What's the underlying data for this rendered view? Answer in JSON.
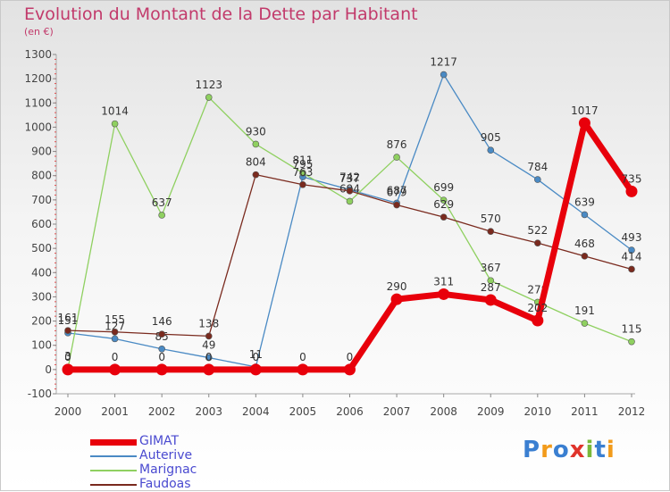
{
  "header": {
    "title": "Evolution du Montant de la Dette par Habitant",
    "subtitle": "(en €)"
  },
  "logo": {
    "text": "Proxiti",
    "colors": [
      "#3a7fd1",
      "#f29b1b",
      "#3a7fd1",
      "#e0342b",
      "#7ab83a",
      "#3a7fd1",
      "#f29b1b"
    ]
  },
  "chart_data": {
    "type": "line",
    "title": "Evolution du Montant de la Dette par Habitant",
    "subtitle": "(en €)",
    "xlabel": "",
    "ylabel": "",
    "x": [
      "2000",
      "2001",
      "2002",
      "2003",
      "2004",
      "2005",
      "2006",
      "2007",
      "2008",
      "2009",
      "2010",
      "2011",
      "2012"
    ],
    "ylim": [
      -100,
      1300
    ],
    "yticks": [
      -100,
      0,
      100,
      200,
      300,
      400,
      500,
      600,
      700,
      800,
      900,
      1000,
      1100,
      1200,
      1300
    ],
    "grid": false,
    "legend": "bottom-left",
    "series": [
      {
        "name": "GIMAT",
        "color": "#e8000b",
        "values": [
          0,
          0,
          0,
          0,
          0,
          0,
          0,
          290,
          311,
          287,
          202,
          1017,
          735
        ]
      },
      {
        "name": "Auterive",
        "color": "#4a8ac4",
        "values": [
          151,
          127,
          85,
          49,
          11,
          795,
          742,
          687,
          1217,
          905,
          784,
          639,
          493
        ]
      },
      {
        "name": "Marignac",
        "color": "#8fd060",
        "values": [
          3,
          1014,
          637,
          1123,
          930,
          811,
          694,
          876,
          699,
          367,
          278,
          191,
          115
        ]
      },
      {
        "name": "Faudoas",
        "color": "#7a2a1e",
        "values": [
          161,
          155,
          146,
          138,
          804,
          763,
          737,
          679,
          629,
          570,
          522,
          468,
          414
        ]
      }
    ]
  }
}
